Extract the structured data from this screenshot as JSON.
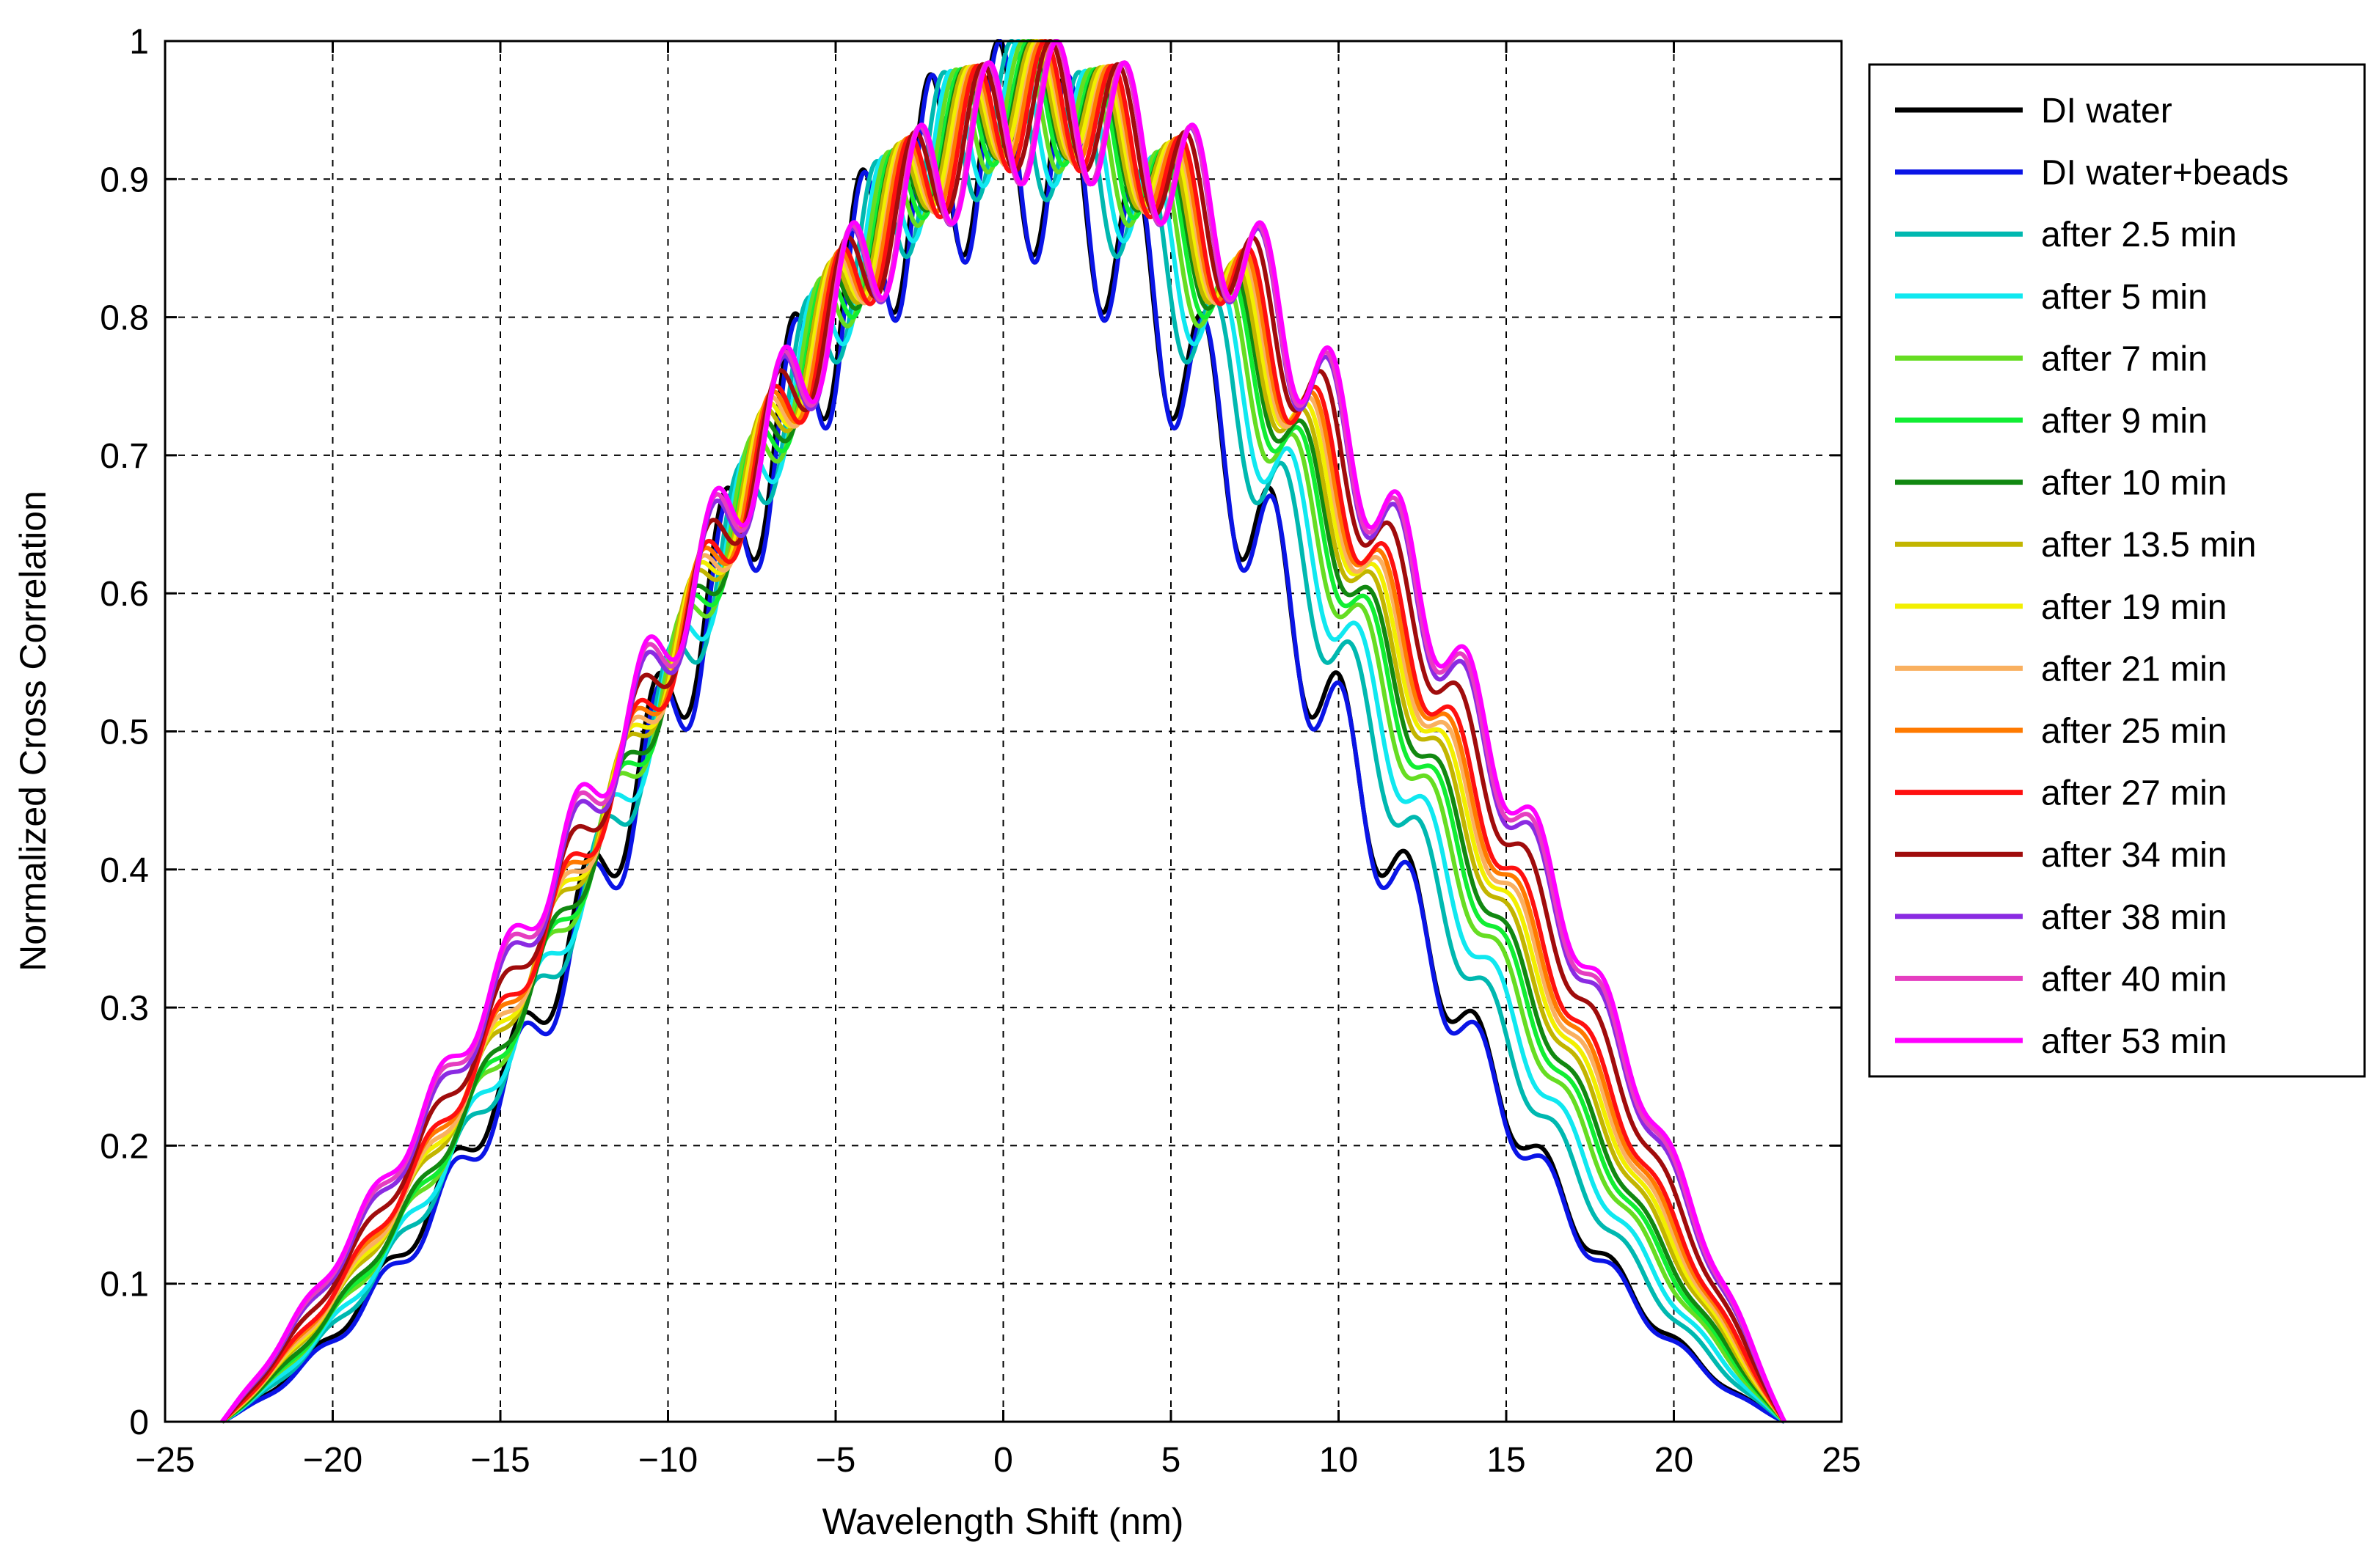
{
  "chart_data": {
    "type": "line",
    "title": "",
    "xlabel": "Wavelength Shift (nm)",
    "ylabel": "Normalized Cross Correlation",
    "xlim": [
      -25,
      25
    ],
    "ylim": [
      0,
      1
    ],
    "xticks": [
      -25,
      -20,
      -15,
      -10,
      -5,
      0,
      5,
      10,
      15,
      20,
      25
    ],
    "xtick_labels": [
      "−25",
      "−20",
      "−15",
      "−10",
      "−5",
      "0",
      "5",
      "10",
      "15",
      "20",
      "25"
    ],
    "yticks": [
      0,
      0.1,
      0.2,
      0.3,
      0.4,
      0.5,
      0.6,
      0.7,
      0.8,
      0.9,
      1
    ],
    "ytick_labels": [
      "0",
      "0.1",
      "0.2",
      "0.3",
      "0.4",
      "0.5",
      "0.6",
      "0.7",
      "0.8",
      "0.9",
      "1"
    ],
    "grid": true,
    "legend_position": "outside-right-top",
    "x_range": [
      -23.3,
      23.3
    ],
    "peak_period_nm": 2.05,
    "series": [
      {
        "name": "DI water",
        "color": "#000000",
        "shift": -0.15,
        "env_sigma": 9.2,
        "ripple": 0.15
      },
      {
        "name": "DI water+beads",
        "color": "#0a14e6",
        "shift": -0.1,
        "env_sigma": 9.1,
        "ripple": 0.155
      },
      {
        "name": "after 2.5 min",
        "color": "#00b8b0",
        "shift": 0.25,
        "env_sigma": 9.5,
        "ripple": 0.11
      },
      {
        "name": "after 5 min",
        "color": "#10e8f0",
        "shift": 0.45,
        "env_sigma": 9.7,
        "ripple": 0.1
      },
      {
        "name": "after 7 min",
        "color": "#66dd22",
        "shift": 0.6,
        "env_sigma": 9.9,
        "ripple": 0.09
      },
      {
        "name": "after 9 min",
        "color": "#11ee33",
        "shift": 0.75,
        "env_sigma": 10.0,
        "ripple": 0.085
      },
      {
        "name": "after 10 min",
        "color": "#118811",
        "shift": 0.85,
        "env_sigma": 10.1,
        "ripple": 0.08
      },
      {
        "name": "after 13.5 min",
        "color": "#c2b500",
        "shift": 0.9,
        "env_sigma": 10.3,
        "ripple": 0.08
      },
      {
        "name": "after 19 min",
        "color": "#f2ef00",
        "shift": 1.0,
        "env_sigma": 10.4,
        "ripple": 0.08
      },
      {
        "name": "after 21 min",
        "color": "#f9b060",
        "shift": 1.1,
        "env_sigma": 10.5,
        "ripple": 0.085
      },
      {
        "name": "after 25 min",
        "color": "#ff7a00",
        "shift": 1.15,
        "env_sigma": 10.6,
        "ripple": 0.085
      },
      {
        "name": "after 27 min",
        "color": "#ff1010",
        "shift": 1.25,
        "env_sigma": 10.7,
        "ripple": 0.09
      },
      {
        "name": "after 34 min",
        "color": "#a00c0c",
        "shift": 1.4,
        "env_sigma": 11.0,
        "ripple": 0.09
      },
      {
        "name": "after 38 min",
        "color": "#8a2be2",
        "shift": 1.55,
        "env_sigma": 11.3,
        "ripple": 0.1
      },
      {
        "name": "after 40 min",
        "color": "#e53ec0",
        "shift": 1.55,
        "env_sigma": 11.4,
        "ripple": 0.1
      },
      {
        "name": "after 53 min",
        "color": "#ff00ff",
        "shift": 1.6,
        "env_sigma": 11.5,
        "ripple": 0.1
      }
    ]
  }
}
